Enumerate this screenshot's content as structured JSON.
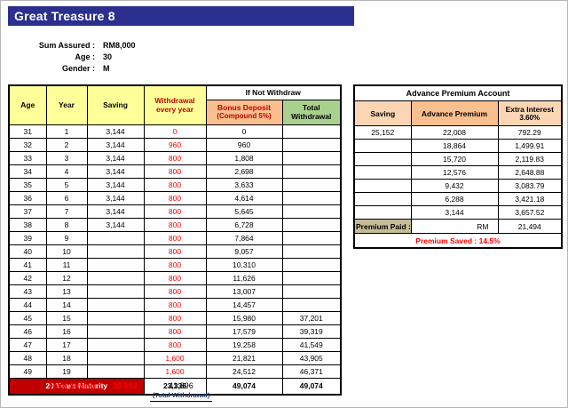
{
  "banner": {
    "title": "Great Treasure 8"
  },
  "info": {
    "rows": [
      {
        "label": "Sum Assured :",
        "value": "RM8,000"
      },
      {
        "label": "Age :",
        "value": "30"
      },
      {
        "label": "Gender :",
        "value": "M"
      }
    ]
  },
  "main_table": {
    "headers": {
      "age": "Age",
      "year": "Year",
      "saving": "Saving",
      "withdrawal": "Withdrawal every year",
      "if_not_withdraw": "If Not Withdraw",
      "bonus_line1": "Bonus Deposit",
      "bonus_line2": "(Compound 5%)",
      "total_withdrawal": "Total Withdrawal"
    },
    "rows": [
      {
        "age": "31",
        "year": "1",
        "saving": "3,144",
        "withdrawal": "0",
        "bonus": "0",
        "total": ""
      },
      {
        "age": "32",
        "year": "2",
        "saving": "3,144",
        "withdrawal": "960",
        "bonus": "960",
        "total": ""
      },
      {
        "age": "33",
        "year": "3",
        "saving": "3,144",
        "withdrawal": "800",
        "bonus": "1,808",
        "total": ""
      },
      {
        "age": "34",
        "year": "4",
        "saving": "3,144",
        "withdrawal": "800",
        "bonus": "2,698",
        "total": ""
      },
      {
        "age": "35",
        "year": "5",
        "saving": "3,144",
        "withdrawal": "800",
        "bonus": "3,633",
        "total": ""
      },
      {
        "age": "36",
        "year": "6",
        "saving": "3,144",
        "withdrawal": "800",
        "bonus": "4,614",
        "total": ""
      },
      {
        "age": "37",
        "year": "7",
        "saving": "3,144",
        "withdrawal": "800",
        "bonus": "5,645",
        "total": ""
      },
      {
        "age": "38",
        "year": "8",
        "saving": "3,144",
        "withdrawal": "800",
        "bonus": "6,728",
        "total": ""
      },
      {
        "age": "39",
        "year": "9",
        "saving": "",
        "withdrawal": "800",
        "bonus": "7,864",
        "total": ""
      },
      {
        "age": "40",
        "year": "10",
        "saving": "",
        "withdrawal": "800",
        "bonus": "9,057",
        "total": ""
      },
      {
        "age": "41",
        "year": "11",
        "saving": "",
        "withdrawal": "800",
        "bonus": "10,310",
        "total": ""
      },
      {
        "age": "42",
        "year": "12",
        "saving": "",
        "withdrawal": "800",
        "bonus": "11,626",
        "total": ""
      },
      {
        "age": "43",
        "year": "13",
        "saving": "",
        "withdrawal": "800",
        "bonus": "13,007",
        "total": ""
      },
      {
        "age": "44",
        "year": "14",
        "saving": "",
        "withdrawal": "800",
        "bonus": "14,457",
        "total": ""
      },
      {
        "age": "45",
        "year": "15",
        "saving": "",
        "withdrawal": "800",
        "bonus": "15,980",
        "total": "37,201"
      },
      {
        "age": "46",
        "year": "16",
        "saving": "",
        "withdrawal": "800",
        "bonus": "17,579",
        "total": "39,319"
      },
      {
        "age": "47",
        "year": "17",
        "saving": "",
        "withdrawal": "800",
        "bonus": "19,258",
        "total": "41,549"
      },
      {
        "age": "48",
        "year": "18",
        "saving": "",
        "withdrawal": "1,600",
        "bonus": "21,821",
        "total": "43,905"
      },
      {
        "age": "49",
        "year": "19",
        "saving": "",
        "withdrawal": "1,600",
        "bonus": "24,512",
        "total": "46,371"
      }
    ],
    "footer": {
      "label": "20 Years Maturity",
      "withdrawal_total": "23,336",
      "bonus_total": "49,074",
      "total_total": "49,074"
    },
    "summary": {
      "total_saving_label": "Total Saving :",
      "total_saving_value": "25,152",
      "total_withdrawal_value": "41,896",
      "total_withdrawal_caption": "(Total Withdrawal)"
    }
  },
  "advance_table": {
    "title": "Advance Premium Account",
    "headers": {
      "saving": "Saving",
      "advance_premium": "Advance Premium",
      "extra_interest": "Extra Interest",
      "extra_interest_rate": "3.60%"
    },
    "rows": [
      {
        "saving": "25,152",
        "premium": "22,008",
        "interest": "792.29"
      },
      {
        "saving": "",
        "premium": "18,864",
        "interest": "1,499.91"
      },
      {
        "saving": "",
        "premium": "15,720",
        "interest": "2,119.83"
      },
      {
        "saving": "",
        "premium": "12,576",
        "interest": "2,648.88"
      },
      {
        "saving": "",
        "premium": "9,432",
        "interest": "3,083.79"
      },
      {
        "saving": "",
        "premium": "6,288",
        "interest": "3,421.18"
      },
      {
        "saving": "",
        "premium": "3,144",
        "interest": "3,657.52"
      }
    ],
    "footer": {
      "premium_paid_label": "Premium Paid :",
      "currency": "RM",
      "premium_paid_value": "21,494",
      "premium_saved": "Premium Saved : 14.5%"
    }
  },
  "colors": {
    "banner_bg": "#2b2f8e",
    "header_yellow": "#ffff99",
    "header_orange": "#fabf8f",
    "header_peach": "#fcd5b4",
    "header_green": "#a9d18e",
    "maturity_red": "#c00000",
    "value_red": "#ff0000",
    "premium_paid_tan": "#c4bd97",
    "caption_navy": "#1f3864"
  }
}
